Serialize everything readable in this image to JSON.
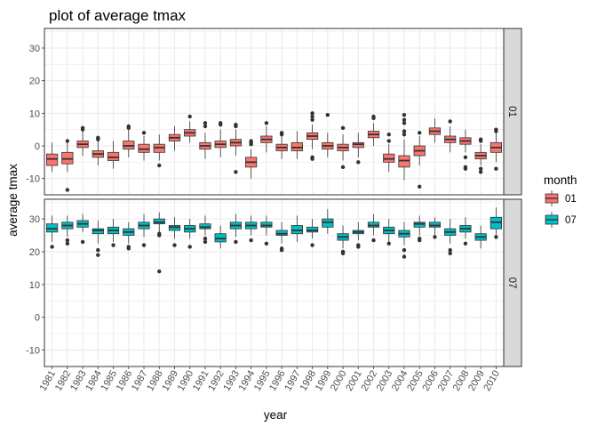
{
  "chart_data": {
    "type": "boxplot",
    "title": "plot of average tmax",
    "xlabel": "year",
    "ylabel": "average tmax",
    "ylim": [
      -15,
      36
    ],
    "yticks": [
      -10,
      0,
      10,
      20,
      30
    ],
    "grid": true,
    "legend": {
      "title": "month",
      "position": "right",
      "entries": [
        "01",
        "07"
      ]
    },
    "colors": {
      "01": "#F8766D",
      "07": "#00BFC4",
      "strip": "#d9d9d9",
      "grid": "#ebebeb",
      "outlier": "#333333"
    },
    "categories": [
      "1981",
      "1982",
      "1983",
      "1984",
      "1985",
      "1986",
      "1987",
      "1988",
      "1989",
      "1990",
      "1991",
      "1992",
      "1993",
      "1994",
      "1995",
      "1996",
      "1997",
      "1998",
      "1999",
      "2000",
      "2001",
      "2002",
      "2003",
      "2004",
      "2005",
      "2006",
      "2007",
      "2008",
      "2009",
      "2010"
    ],
    "facets": [
      {
        "strip": "01",
        "series": "01",
        "boxes": [
          {
            "min": -8,
            "q1": -6,
            "median": -4,
            "q3": -2.5,
            "max": 1,
            "outliers": []
          },
          {
            "min": -8,
            "q1": -5.5,
            "median": -4,
            "q3": -2,
            "max": 1,
            "outliers": [
              -13.5,
              1.5
            ]
          },
          {
            "min": -3,
            "q1": -0.5,
            "median": 0.5,
            "q3": 1.5,
            "max": 4.5,
            "outliers": [
              5,
              5.5
            ]
          },
          {
            "min": -6,
            "q1": -3.5,
            "median": -2.5,
            "q3": -1.5,
            "max": 1.5,
            "outliers": [
              2,
              2.5
            ]
          },
          {
            "min": -7,
            "q1": -4.5,
            "median": -3.5,
            "q3": -2,
            "max": 1.5,
            "outliers": []
          },
          {
            "min": -3.5,
            "q1": -1,
            "median": 0,
            "q3": 1.5,
            "max": 5,
            "outliers": [
              5.5,
              6
            ]
          },
          {
            "min": -4.5,
            "q1": -2,
            "median": -1,
            "q3": 0.5,
            "max": 3,
            "outliers": [
              4
            ]
          },
          {
            "min": -4.5,
            "q1": -2,
            "median": -0.5,
            "q3": 0.5,
            "max": 3.5,
            "outliers": [
              -6
            ]
          },
          {
            "min": -1.5,
            "q1": 1.5,
            "median": 2.5,
            "q3": 3.5,
            "max": 6,
            "outliers": []
          },
          {
            "min": 1,
            "q1": 3,
            "median": 4,
            "q3": 5,
            "max": 7.5,
            "outliers": [
              9
            ]
          },
          {
            "min": -4,
            "q1": -1,
            "median": 0,
            "q3": 1,
            "max": 4,
            "outliers": [
              6,
              7
            ]
          },
          {
            "min": -3.5,
            "q1": -0.5,
            "median": 0.5,
            "q3": 1.5,
            "max": 5,
            "outliers": [
              6.5,
              7
            ]
          },
          {
            "min": -3,
            "q1": 0,
            "median": 1,
            "q3": 2,
            "max": 5,
            "outliers": [
              -8,
              6,
              6.5
            ]
          },
          {
            "min": -10,
            "q1": -6.5,
            "median": -5,
            "q3": -3.5,
            "max": -1,
            "outliers": [
              0.5,
              1,
              1.5
            ]
          },
          {
            "min": -2,
            "q1": 1,
            "median": 2,
            "q3": 3,
            "max": 6,
            "outliers": [
              7
            ]
          },
          {
            "min": -4,
            "q1": -1.5,
            "median": -0.5,
            "q3": 0.5,
            "max": 3,
            "outliers": [
              3.5,
              4
            ]
          },
          {
            "min": -4,
            "q1": -1.5,
            "median": -0.5,
            "q3": 1,
            "max": 4.5,
            "outliers": []
          },
          {
            "min": -1,
            "q1": 2,
            "median": 3,
            "q3": 4,
            "max": 6.5,
            "outliers": [
              -3.5,
              -4,
              8,
              9,
              10
            ]
          },
          {
            "min": -3.5,
            "q1": -1,
            "median": 0,
            "q3": 1,
            "max": 4,
            "outliers": [
              9.5
            ]
          },
          {
            "min": -4.5,
            "q1": -1.5,
            "median": -0.5,
            "q3": 0.5,
            "max": 3.5,
            "outliers": [
              -6.5,
              5.5
            ]
          },
          {
            "min": -3.5,
            "q1": -0.5,
            "median": 0.5,
            "q3": 1,
            "max": 4,
            "outliers": [
              -5
            ]
          },
          {
            "min": 0,
            "q1": 2.5,
            "median": 3.5,
            "q3": 4.5,
            "max": 7,
            "outliers": [
              8.5,
              9
            ]
          },
          {
            "min": -8,
            "q1": -5,
            "median": -4,
            "q3": -2.5,
            "max": 0.5,
            "outliers": [
              1.5,
              3.5
            ]
          },
          {
            "min": -10.5,
            "q1": -6.5,
            "median": -4.5,
            "q3": -3,
            "max": 2,
            "outliers": [
              3.5,
              4.5,
              7,
              8,
              9.5
            ]
          },
          {
            "min": -6,
            "q1": -3,
            "median": -1.5,
            "q3": 0,
            "max": 3,
            "outliers": [
              -12.5,
              4
            ]
          },
          {
            "min": 1,
            "q1": 3.5,
            "median": 4.5,
            "q3": 5.5,
            "max": 8.5,
            "outliers": []
          },
          {
            "min": -2,
            "q1": 1,
            "median": 2,
            "q3": 3,
            "max": 6,
            "outliers": [
              7.5
            ]
          },
          {
            "min": -2,
            "q1": 0.5,
            "median": 1.5,
            "q3": 2.5,
            "max": 5,
            "outliers": [
              -3.5,
              -6.5,
              -7
            ]
          },
          {
            "min": -6,
            "q1": -4,
            "median": -3,
            "q3": -2,
            "max": 0.5,
            "outliers": [
              -7,
              -8,
              1.5,
              2
            ]
          },
          {
            "min": -5,
            "q1": -2,
            "median": -0.5,
            "q3": 1,
            "max": 4,
            "outliers": [
              -7,
              4.5,
              5
            ]
          }
        ]
      },
      {
        "strip": "07",
        "series": "07",
        "boxes": [
          {
            "min": 23,
            "q1": 26,
            "median": 27,
            "q3": 28.5,
            "max": 31,
            "outliers": [
              21.5
            ]
          },
          {
            "min": 24.5,
            "q1": 27,
            "median": 28,
            "q3": 29,
            "max": 31,
            "outliers": [
              22.5,
              23.5
            ]
          },
          {
            "min": 26,
            "q1": 27.5,
            "median": 28.5,
            "q3": 29.5,
            "max": 31.5,
            "outliers": [
              23
            ]
          },
          {
            "min": 22.5,
            "q1": 25.5,
            "median": 26.5,
            "q3": 27,
            "max": 29.5,
            "outliers": [
              19,
              20.5
            ]
          },
          {
            "min": 23,
            "q1": 25.5,
            "median": 26.5,
            "q3": 27.5,
            "max": 30,
            "outliers": [
              22
            ]
          },
          {
            "min": 22.5,
            "q1": 25,
            "median": 26,
            "q3": 27,
            "max": 29,
            "outliers": [
              21,
              21.5
            ]
          },
          {
            "min": 24.5,
            "q1": 27,
            "median": 28,
            "q3": 29,
            "max": 31.5,
            "outliers": [
              22
            ]
          },
          {
            "min": 26,
            "q1": 28.5,
            "median": 29,
            "q3": 30,
            "max": 32,
            "outliers": [
              14,
              25,
              25.5
            ]
          },
          {
            "min": 24,
            "q1": 26.5,
            "median": 27.5,
            "q3": 28,
            "max": 30.5,
            "outliers": [
              22
            ]
          },
          {
            "min": 24,
            "q1": 26,
            "median": 27,
            "q3": 28,
            "max": 30,
            "outliers": [
              21.5
            ]
          },
          {
            "min": 25,
            "q1": 27,
            "median": 27.5,
            "q3": 28.5,
            "max": 31,
            "outliers": [
              23,
              24
            ]
          },
          {
            "min": 21,
            "q1": 23,
            "median": 24,
            "q3": 25.5,
            "max": 28,
            "outliers": []
          },
          {
            "min": 24.5,
            "q1": 27,
            "median": 28,
            "q3": 29,
            "max": 31.5,
            "outliers": [
              23
            ]
          },
          {
            "min": 25,
            "q1": 27,
            "median": 28,
            "q3": 29,
            "max": 31,
            "outliers": [
              23.5
            ]
          },
          {
            "min": 25,
            "q1": 27.5,
            "median": 28,
            "q3": 29,
            "max": 31,
            "outliers": [
              22.5
            ]
          },
          {
            "min": 22.5,
            "q1": 25,
            "median": 25.5,
            "q3": 26.5,
            "max": 29,
            "outliers": [
              20.5,
              21
            ]
          },
          {
            "min": 23,
            "q1": 25.5,
            "median": 26.5,
            "q3": 28,
            "max": 31,
            "outliers": []
          },
          {
            "min": 24,
            "q1": 26,
            "median": 26.5,
            "q3": 27.5,
            "max": 30,
            "outliers": [
              22
            ]
          },
          {
            "min": 25.5,
            "q1": 27.5,
            "median": 29,
            "q3": 30,
            "max": 33,
            "outliers": []
          },
          {
            "min": 21,
            "q1": 23.5,
            "median": 24.5,
            "q3": 25.5,
            "max": 28,
            "outliers": [
              19.5,
              20
            ]
          },
          {
            "min": 23.5,
            "q1": 25.5,
            "median": 26,
            "q3": 26.5,
            "max": 29,
            "outliers": [
              21.5,
              22
            ]
          },
          {
            "min": 25,
            "q1": 27.5,
            "median": 28,
            "q3": 29,
            "max": 31.5,
            "outliers": [
              23.5
            ]
          },
          {
            "min": 23,
            "q1": 25.5,
            "median": 26.5,
            "q3": 27.5,
            "max": 30,
            "outliers": [
              22.5
            ]
          },
          {
            "min": 22,
            "q1": 24.5,
            "median": 25.5,
            "q3": 26.5,
            "max": 29,
            "outliers": [
              18.5,
              20.5
            ]
          },
          {
            "min": 25,
            "q1": 27.5,
            "median": 28.5,
            "q3": 29,
            "max": 31,
            "outliers": [
              23.5,
              24
            ]
          },
          {
            "min": 25,
            "q1": 27.5,
            "median": 28,
            "q3": 29,
            "max": 30.5,
            "outliers": [
              24.5
            ]
          },
          {
            "min": 22.5,
            "q1": 25,
            "median": 26,
            "q3": 27,
            "max": 30,
            "outliers": [
              19.5,
              20.5
            ]
          },
          {
            "min": 24,
            "q1": 26,
            "median": 27,
            "q3": 28,
            "max": 30.5,
            "outliers": [
              22.5
            ]
          },
          {
            "min": 21,
            "q1": 23.5,
            "median": 24.5,
            "q3": 25.5,
            "max": 28,
            "outliers": []
          },
          {
            "min": 25,
            "q1": 27,
            "median": 29,
            "q3": 30.5,
            "max": 33.5,
            "outliers": [
              24.5
            ]
          }
        ]
      }
    ]
  }
}
